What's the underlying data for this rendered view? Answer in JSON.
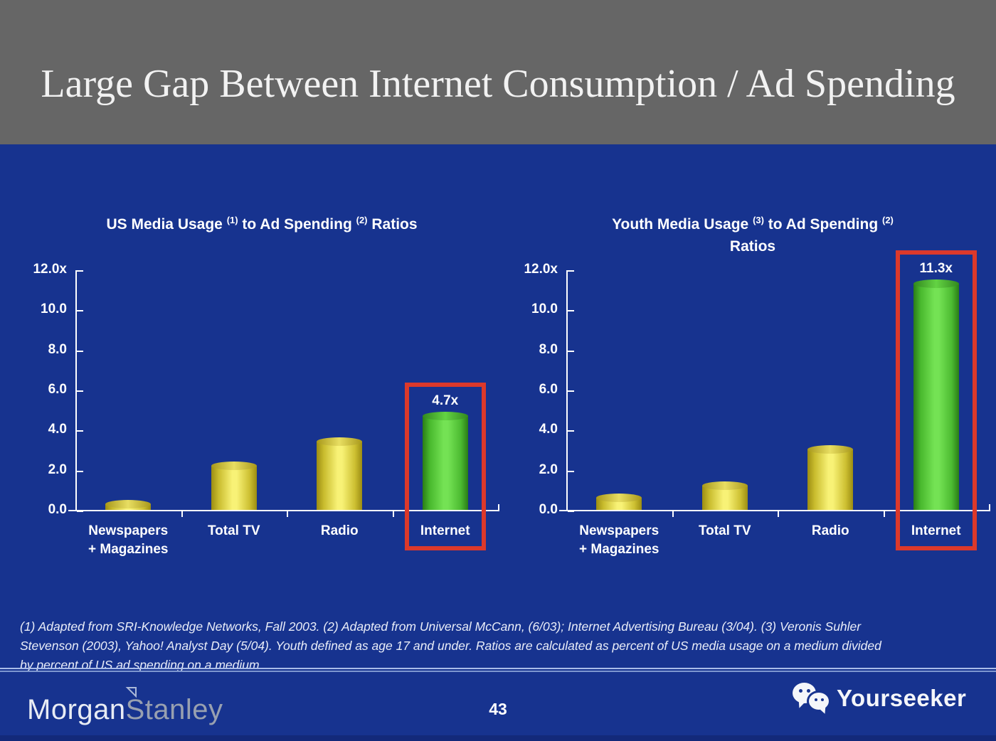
{
  "slide": {
    "title": "Large Gap Between Internet Consumption / Ad Spending",
    "page_number": "43",
    "footnote_lines": [
      "(1) Adapted from SRI-Knowledge Networks, Fall 2003.  (2) Adapted from Universal McCann, (6/03); Internet Advertising Bureau (3/04). (3) Veronis Suhler",
      "Stevenson (2003), Yahoo! Analyst Day (5/04).  Youth defined as age 17 and under.  Ratios are calculated as percent of US media usage on a medium divided",
      "by percent of US ad spending on a medium."
    ],
    "brand_left": {
      "part1": "Morgan",
      "part2": "Stanley"
    },
    "brand_right": "Yourseeker"
  },
  "colors": {
    "header_bg": "#666666",
    "slide_bg": "#17338f",
    "bar_yellow_mid": "#f8f276",
    "bar_yellow_edge": "#9c8d12",
    "bar_green_mid": "#74e254",
    "bar_green_edge": "#2a7d17",
    "highlight_red": "#dc392b",
    "axis_white": "#ffffff",
    "divider_blue": "#a9bce8",
    "stanley_gray": "#98a0b0"
  },
  "chart_data": [
    {
      "type": "bar",
      "title": "US Media Usage (1) to Ad Spending (2) Ratios",
      "title_segments": [
        [
          "text",
          "US Media Usage "
        ],
        [
          "sup",
          "(1)"
        ],
        [
          "text",
          " to Ad Spending "
        ],
        [
          "sup",
          "(2)"
        ],
        [
          "text",
          " Ratios"
        ]
      ],
      "categories": [
        [
          "Newspapers",
          "+ Magazines"
        ],
        [
          "Total TV"
        ],
        [
          "Radio"
        ],
        [
          "Internet"
        ]
      ],
      "values": [
        0.3,
        2.2,
        3.4,
        4.7
      ],
      "bar_value_labels": [
        "",
        "",
        "",
        "4.7x"
      ],
      "bar_styles": [
        "yellow",
        "yellow",
        "yellow",
        "green"
      ],
      "highlight_index": 3,
      "y_ticks": [
        {
          "value": 12,
          "label": "12.0x"
        },
        {
          "value": 10,
          "label": "10.0"
        },
        {
          "value": 8,
          "label": "8.0"
        },
        {
          "value": 6,
          "label": "6.0"
        },
        {
          "value": 4,
          "label": "4.0"
        },
        {
          "value": 2,
          "label": "2.0"
        },
        {
          "value": 0,
          "label": "0.0"
        }
      ],
      "ylim": [
        0,
        12
      ],
      "xlabel": "",
      "ylabel": "",
      "grid": false,
      "legend": null
    },
    {
      "type": "bar",
      "title": "Youth Media Usage (3) to Ad Spending (2) Ratios",
      "title_segments": [
        [
          "text",
          "Youth Media Usage "
        ],
        [
          "sup",
          "(3)"
        ],
        [
          "text",
          " to Ad Spending "
        ],
        [
          "sup",
          "(2)"
        ],
        [
          "br",
          ""
        ],
        [
          "text",
          "Ratios"
        ]
      ],
      "categories": [
        [
          "Newspapers",
          "+ Magazines"
        ],
        [
          "Total TV"
        ],
        [
          "Radio"
        ],
        [
          "Internet"
        ]
      ],
      "values": [
        0.6,
        1.2,
        3.0,
        11.3
      ],
      "bar_value_labels": [
        "",
        "",
        "",
        "11.3x"
      ],
      "bar_styles": [
        "yellow",
        "yellow",
        "yellow",
        "green"
      ],
      "highlight_index": 3,
      "y_ticks": [
        {
          "value": 12,
          "label": "12.0x"
        },
        {
          "value": 10,
          "label": "10.0"
        },
        {
          "value": 8,
          "label": "8.0"
        },
        {
          "value": 6,
          "label": "6.0"
        },
        {
          "value": 4,
          "label": "4.0"
        },
        {
          "value": 2,
          "label": "2.0"
        },
        {
          "value": 0,
          "label": "0.0"
        }
      ],
      "ylim": [
        0,
        12
      ],
      "xlabel": "",
      "ylabel": "",
      "grid": false,
      "legend": null
    }
  ]
}
